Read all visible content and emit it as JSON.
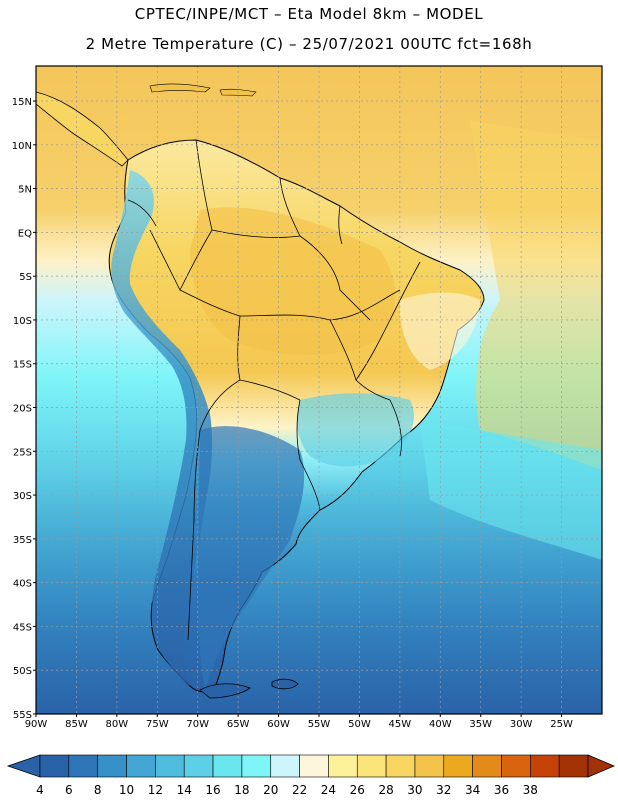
{
  "title": {
    "line1": "CPTEC/INPE/MCT –  Eta Model 8km – MODEL",
    "line2": "2 Metre Temperature (C) – 25/07/2021 00UTC fct=168h"
  },
  "map": {
    "lon_labels": [
      "90W",
      "85W",
      "80W",
      "75W",
      "70W",
      "65W",
      "60W",
      "55W",
      "50W",
      "45W",
      "40W",
      "35W",
      "30W",
      "25W"
    ],
    "lat_labels": [
      "15N",
      "10N",
      "5N",
      "EQ",
      "5S",
      "10S",
      "15S",
      "20S",
      "25S",
      "30S",
      "35S",
      "40S",
      "45S",
      "50S",
      "55S"
    ],
    "lon_range": [
      -90,
      -20
    ],
    "lat_range": [
      -55,
      19
    ]
  },
  "colorbar": {
    "labels": [
      "4",
      "6",
      "8",
      "10",
      "12",
      "14",
      "16",
      "18",
      "20",
      "22",
      "24",
      "26",
      "28",
      "30",
      "32",
      "34",
      "36",
      "38"
    ],
    "colors": [
      "#2a62a8",
      "#2f76b8",
      "#3790c6",
      "#43a6d2",
      "#4fbcde",
      "#5dd0e6",
      "#6ae6ef",
      "#7ff5f8",
      "#cdf5fb",
      "#fdf6dc",
      "#fdf19a",
      "#fbe57a",
      "#f7d662",
      "#f2c24a",
      "#eaa91e",
      "#e48a1a",
      "#d8650e",
      "#c54308",
      "#a23206"
    ]
  },
  "colors": {
    "ocean_north": "#f6cf5e",
    "ocean_south_deep": "#2a62a8",
    "land_warm": "#fbe57a",
    "land_cold": "#2a62a8",
    "border": "#000000"
  }
}
